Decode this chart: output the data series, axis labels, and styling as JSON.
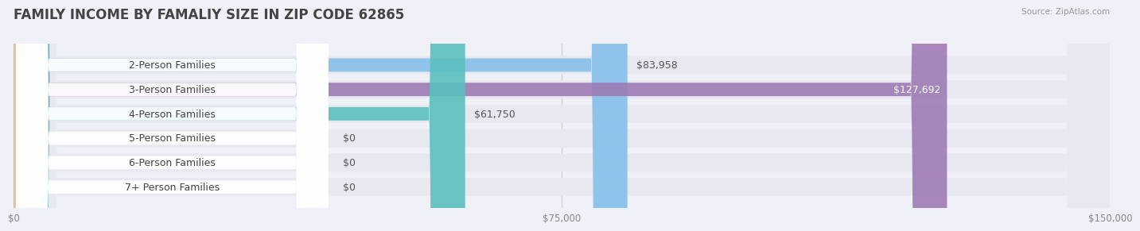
{
  "title": "FAMILY INCOME BY FAMALIY SIZE IN ZIP CODE 62865",
  "source": "Source: ZipAtlas.com",
  "categories": [
    "2-Person Families",
    "3-Person Families",
    "4-Person Families",
    "5-Person Families",
    "6-Person Families",
    "7+ Person Families"
  ],
  "values": [
    83958,
    127692,
    61750,
    0,
    0,
    0
  ],
  "bar_colors": [
    "#85BFEA",
    "#9E7BB5",
    "#5BBFBE",
    "#A8A8D8",
    "#F5909A",
    "#F5C898"
  ],
  "value_labels": [
    "$83,958",
    "$127,692",
    "$61,750",
    "$0",
    "$0",
    "$0"
  ],
  "value_inside": [
    false,
    true,
    false,
    false,
    false,
    false
  ],
  "xlim": [
    0,
    150000
  ],
  "xticks": [
    0,
    75000,
    150000
  ],
  "xtick_labels": [
    "$0",
    "$75,000",
    "$150,000"
  ],
  "bg_color": "#f0f0f8",
  "row_bg_color": "#e8e8f0",
  "label_pill_color": "#ffffff",
  "title_fontsize": 12,
  "label_fontsize": 9,
  "value_fontsize": 9
}
